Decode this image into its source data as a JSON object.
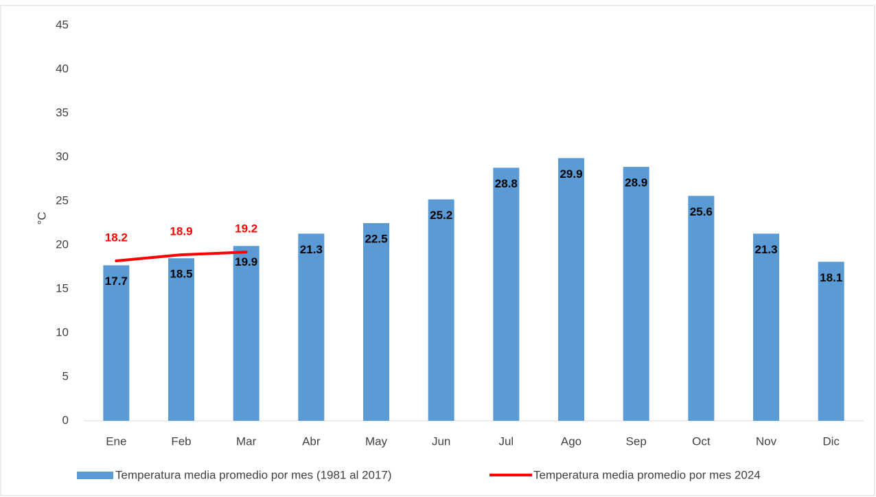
{
  "chart_data": {
    "type": "bar",
    "y_label": "°C",
    "categories": [
      "Ene",
      "Feb",
      "Mar",
      "Abr",
      "May",
      "Jun",
      "Jul",
      "Ago",
      "Sep",
      "Oct",
      "Nov",
      "Dic"
    ],
    "series": [
      {
        "name": "Temperatura media promedio por mes (1981 al 2017)",
        "type": "bar",
        "color": "#5b9bd5",
        "values": [
          17.7,
          18.5,
          19.9,
          21.3,
          22.5,
          25.2,
          28.8,
          29.9,
          28.9,
          25.6,
          21.3,
          18.1
        ]
      },
      {
        "name": "Temperatura media promedio por mes  2024",
        "type": "line",
        "color": "#ff0000",
        "values": [
          18.2,
          18.9,
          19.2,
          null,
          null,
          null,
          null,
          null,
          null,
          null,
          null,
          null
        ]
      }
    ],
    "ylim": [
      0,
      45
    ],
    "yticks": [
      0,
      5,
      10,
      15,
      20,
      25,
      30,
      35,
      40,
      45
    ],
    "grid": false,
    "legend": "bottom"
  }
}
